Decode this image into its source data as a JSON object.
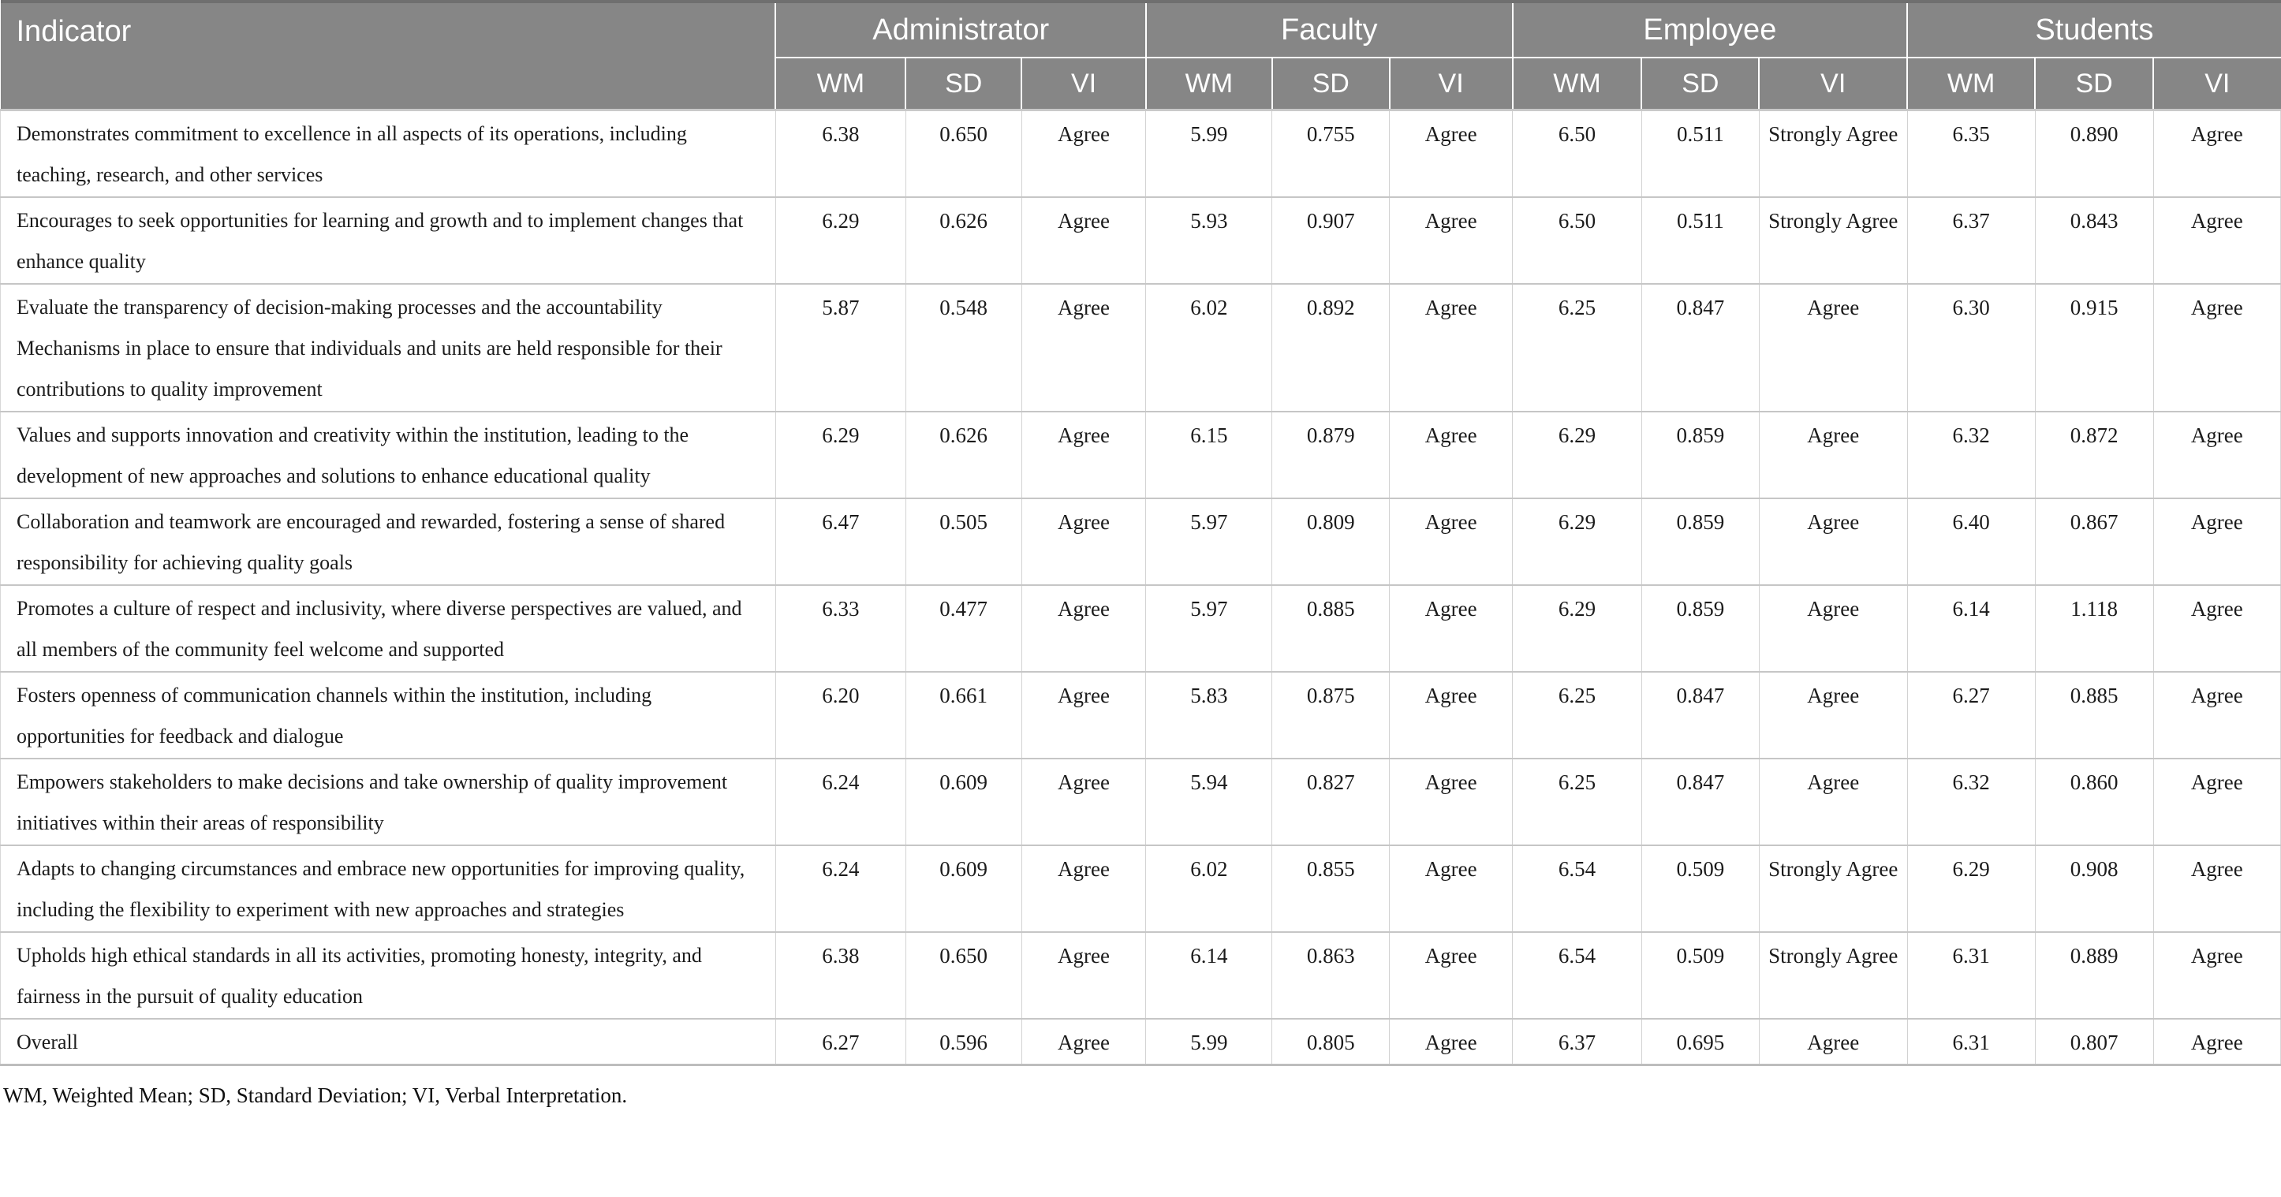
{
  "colors": {
    "header_bg": "#868686",
    "header_text": "#ffffff",
    "row_border": "#c6c6c6",
    "body_text": "#1b1b1b"
  },
  "table": {
    "indicator_header": "Indicator",
    "groups": [
      {
        "label": "Administrator"
      },
      {
        "label": "Faculty"
      },
      {
        "label": "Employee"
      },
      {
        "label": "Students"
      }
    ],
    "subheaders": [
      "WM",
      "SD",
      "VI"
    ],
    "rows": [
      {
        "indicator": "Demonstrates commitment to excellence in all aspects of its operations, including teaching, research, and other services",
        "cells": [
          "6.38",
          "0.650",
          "Agree",
          "5.99",
          "0.755",
          "Agree",
          "6.50",
          "0.511",
          "Strongly Agree",
          "6.35",
          "0.890",
          "Agree"
        ]
      },
      {
        "indicator": "Encourages to seek opportunities for learning and growth and to implement changes that enhance quality",
        "cells": [
          "6.29",
          "0.626",
          "Agree",
          "5.93",
          "0.907",
          "Agree",
          "6.50",
          "0.511",
          "Strongly Agree",
          "6.37",
          "0.843",
          "Agree"
        ]
      },
      {
        "indicator": "Evaluate the transparency of decision-making processes and the accountability Mechanisms in place to ensure that individuals and units are held responsible for their contributions to quality improvement",
        "cells": [
          "5.87",
          "0.548",
          "Agree",
          "6.02",
          "0.892",
          "Agree",
          "6.25",
          "0.847",
          "Agree",
          "6.30",
          "0.915",
          "Agree"
        ]
      },
      {
        "indicator": "Values and supports innovation and creativity within the institution, leading to the development of new approaches and solutions to enhance educational quality",
        "cells": [
          "6.29",
          "0.626",
          "Agree",
          "6.15",
          "0.879",
          "Agree",
          "6.29",
          "0.859",
          "Agree",
          "6.32",
          "0.872",
          "Agree"
        ]
      },
      {
        "indicator": "Collaboration and teamwork are encouraged and rewarded, fostering a sense of shared responsibility for achieving quality goals",
        "cells": [
          "6.47",
          "0.505",
          "Agree",
          "5.97",
          "0.809",
          "Agree",
          "6.29",
          "0.859",
          "Agree",
          "6.40",
          "0.867",
          "Agree"
        ]
      },
      {
        "indicator": "Promotes a culture of respect and inclusivity, where diverse perspectives are valued, and all members of the community feel welcome and supported",
        "cells": [
          "6.33",
          "0.477",
          "Agree",
          "5.97",
          "0.885",
          "Agree",
          "6.29",
          "0.859",
          "Agree",
          "6.14",
          "1.118",
          "Agree"
        ]
      },
      {
        "indicator": "Fosters openness of communication channels within the institution, including opportunities for feedback and dialogue",
        "cells": [
          "6.20",
          "0.661",
          "Agree",
          "5.83",
          "0.875",
          "Agree",
          "6.25",
          "0.847",
          "Agree",
          "6.27",
          "0.885",
          "Agree"
        ]
      },
      {
        "indicator": "Empowers stakeholders to make decisions and take ownership of quality improvement initiatives within their areas of responsibility",
        "cells": [
          "6.24",
          "0.609",
          "Agree",
          "5.94",
          "0.827",
          "Agree",
          "6.25",
          "0.847",
          "Agree",
          "6.32",
          "0.860",
          "Agree"
        ]
      },
      {
        "indicator": "Adapts to changing circumstances and embrace new opportunities for improving quality, including the flexibility to experiment with new approaches and strategies",
        "cells": [
          "6.24",
          "0.609",
          "Agree",
          "6.02",
          "0.855",
          "Agree",
          "6.54",
          "0.509",
          "Strongly Agree",
          "6.29",
          "0.908",
          "Agree"
        ]
      },
      {
        "indicator": "Upholds high ethical standards in all its activities, promoting honesty, integrity, and fairness in the pursuit of quality education",
        "cells": [
          "6.38",
          "0.650",
          "Agree",
          "6.14",
          "0.863",
          "Agree",
          "6.54",
          "0.509",
          "Strongly Agree",
          "6.31",
          "0.889",
          "Agree"
        ]
      },
      {
        "indicator": "Overall",
        "cells": [
          "6.27",
          "0.596",
          "Agree",
          "5.99",
          "0.805",
          "Agree",
          "6.37",
          "0.695",
          "Agree",
          "6.31",
          "0.807",
          "Agree"
        ]
      }
    ],
    "footnote": "WM, Weighted Mean; SD, Standard Deviation; VI, Verbal Interpretation."
  }
}
